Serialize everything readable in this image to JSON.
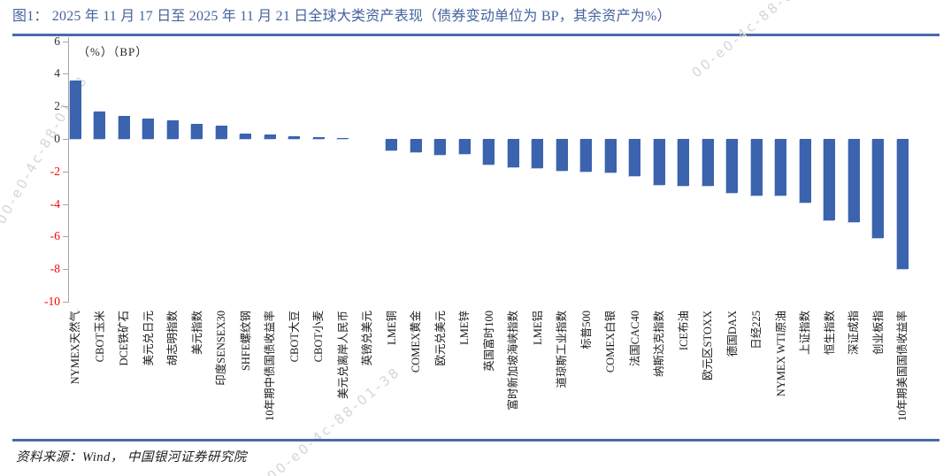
{
  "header": {
    "title": "图1：  2025 年 11 月 17 日至 2025 年 11 月 21 日全球大类资产表现（债券变动单位为 BP，其余资产为%）"
  },
  "footer": {
    "source": "资料来源：Wind， 中国银河证券研究院"
  },
  "watermark": {
    "text": "00-e0-4c-88-01-38"
  },
  "chart_data": {
    "type": "bar",
    "title": "2025年11月17日至2025年11月21日全球大类资产表现",
    "unit_label": "（%）（BP）",
    "ylim": [
      -10,
      6
    ],
    "yticks": [
      6,
      4,
      2,
      0,
      -2,
      -4,
      -6,
      -8,
      -10
    ],
    "grid": false,
    "legend": null,
    "bar_color": "#3b63ae",
    "negative_tick_color": "#fe0000",
    "categories": [
      "NYMEX天然气",
      "CBOT玉米",
      "DCE铁矿石",
      "美元兑日元",
      "胡志明指数",
      "美元指数",
      "印度SENSEX30",
      "SHFE螺纹钢",
      "10年期中债国债收益率",
      "CBOT大豆",
      "CBOT小麦",
      "美元兑离岸人民币",
      "英镑兑美元",
      "LME铜",
      "COMEX黄金",
      "欧元兑美元",
      "LME锌",
      "英国富时100",
      "富时新加坡海峡指数",
      "LME铝",
      "道琼斯工业指数",
      "标普500",
      "COMEX白银",
      "法国CAC40",
      "纳斯达克指数",
      "ICE布油",
      "欧元区STOXX",
      "德国DAX",
      "日经225",
      "NYMEX WTI原油",
      "上证指数",
      "恒生指数",
      "深证成指",
      "创业板指",
      "10年期美国国债收益率"
    ],
    "values": [
      3.6,
      1.7,
      1.4,
      1.25,
      1.15,
      0.9,
      0.8,
      0.35,
      0.3,
      0.15,
      0.1,
      0.05,
      0,
      -0.7,
      -0.8,
      -0.95,
      -0.9,
      -1.6,
      -1.75,
      -1.8,
      -1.95,
      -2.0,
      -2.05,
      -2.3,
      -2.8,
      -2.9,
      -2.9,
      -3.3,
      -3.5,
      -3.45,
      -3.9,
      -5.0,
      -5.1,
      -6.1,
      -8.0
    ]
  }
}
